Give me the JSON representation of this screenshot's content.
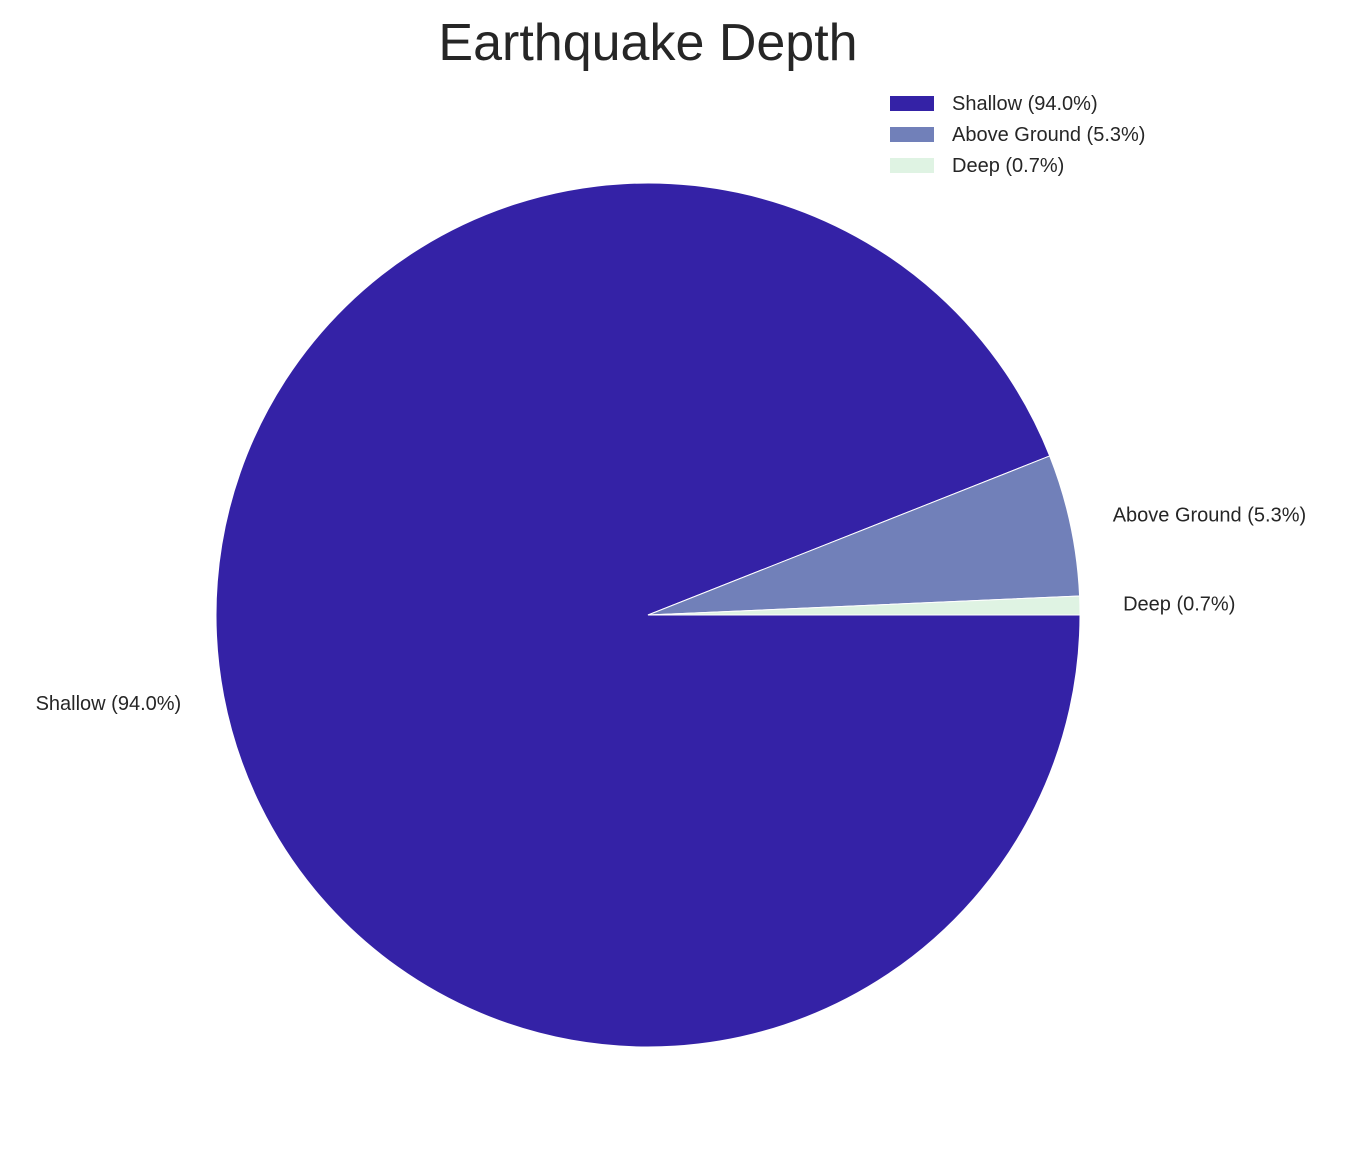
{
  "chart_data": {
    "type": "pie",
    "title": "Earthquake Depth",
    "start_angle_deg": 0,
    "direction": "clockwise",
    "legend_position": "top-right",
    "slices": [
      {
        "label": "Shallow (94.0%)",
        "category": "Shallow",
        "value": 94.0,
        "color": "#3422a6"
      },
      {
        "label": "Above Ground (5.3%)",
        "category": "Above Ground",
        "value": 5.3,
        "color": "#7180b9"
      },
      {
        "label": "Deep (0.7%)",
        "category": "Deep",
        "value": 0.7,
        "color": "#dff3e3"
      }
    ]
  }
}
